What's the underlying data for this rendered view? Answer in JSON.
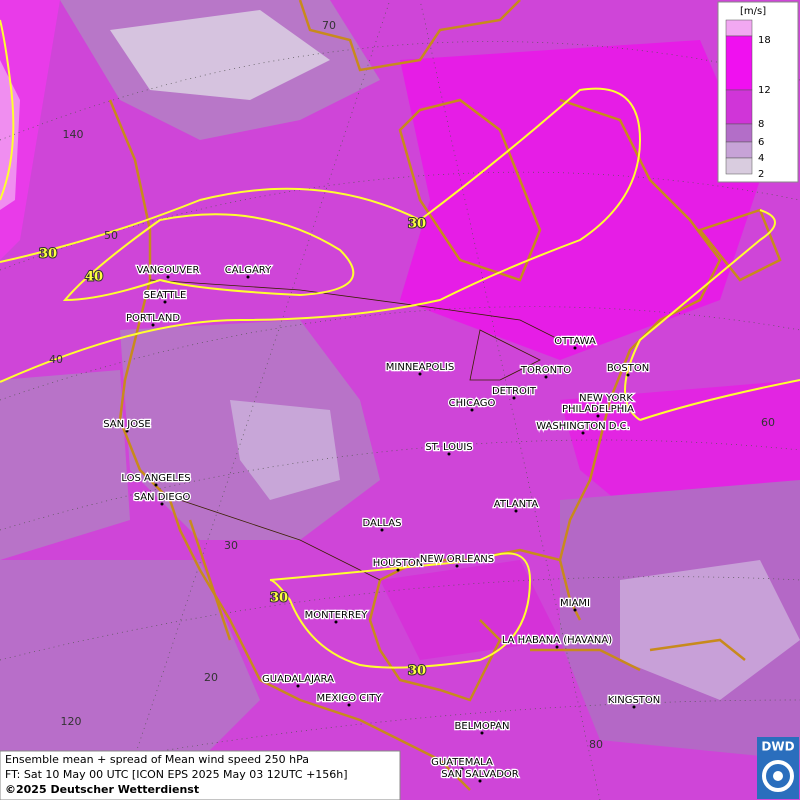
{
  "map": {
    "cities": [
      "VANCOUVER",
      "CALGARY",
      "SEATTLE",
      "PORTLAND",
      "MINNEAPOLIS",
      "OTTAWA",
      "TORONTO",
      "BOSTON",
      "DETROIT",
      "CHICAGO",
      "NEW YORK",
      "PHILADELPHIA",
      "WASHINGTON D.C.",
      "SAN JOSE",
      "ST. LOUIS",
      "LOS ANGELES",
      "SAN DIEGO",
      "ATLANTA",
      "DALLAS",
      "HOUSTON",
      "NEW ORLEANS",
      "MONTERREY",
      "MIAMI",
      "LA HABANA (HAVANA)",
      "GUADALAJARA",
      "MEXICO CITY",
      "KINGSTON",
      "BELMOPAN",
      "GUATEMALA",
      "SAN SALVADOR"
    ],
    "grid_labels": [
      "70",
      "140",
      "50",
      "40",
      "60",
      "30",
      "20",
      "120",
      "80"
    ],
    "contour_labels": [
      "30",
      "40",
      "30",
      "30",
      "30"
    ]
  },
  "legend": {
    "unit": "[m/s]",
    "ticks": [
      "18",
      "12",
      "8",
      "6",
      "4",
      "2"
    ]
  },
  "footer": {
    "line1": "Ensemble mean + spread of Mean wind speed 250 hPa",
    "line2": "FT: Sat 10 May 00 UTC [ICON EPS 2025 May 03 12UTC +156h]",
    "line3": "©2025 Deutscher Wetterdienst"
  },
  "logo": "DWD"
}
